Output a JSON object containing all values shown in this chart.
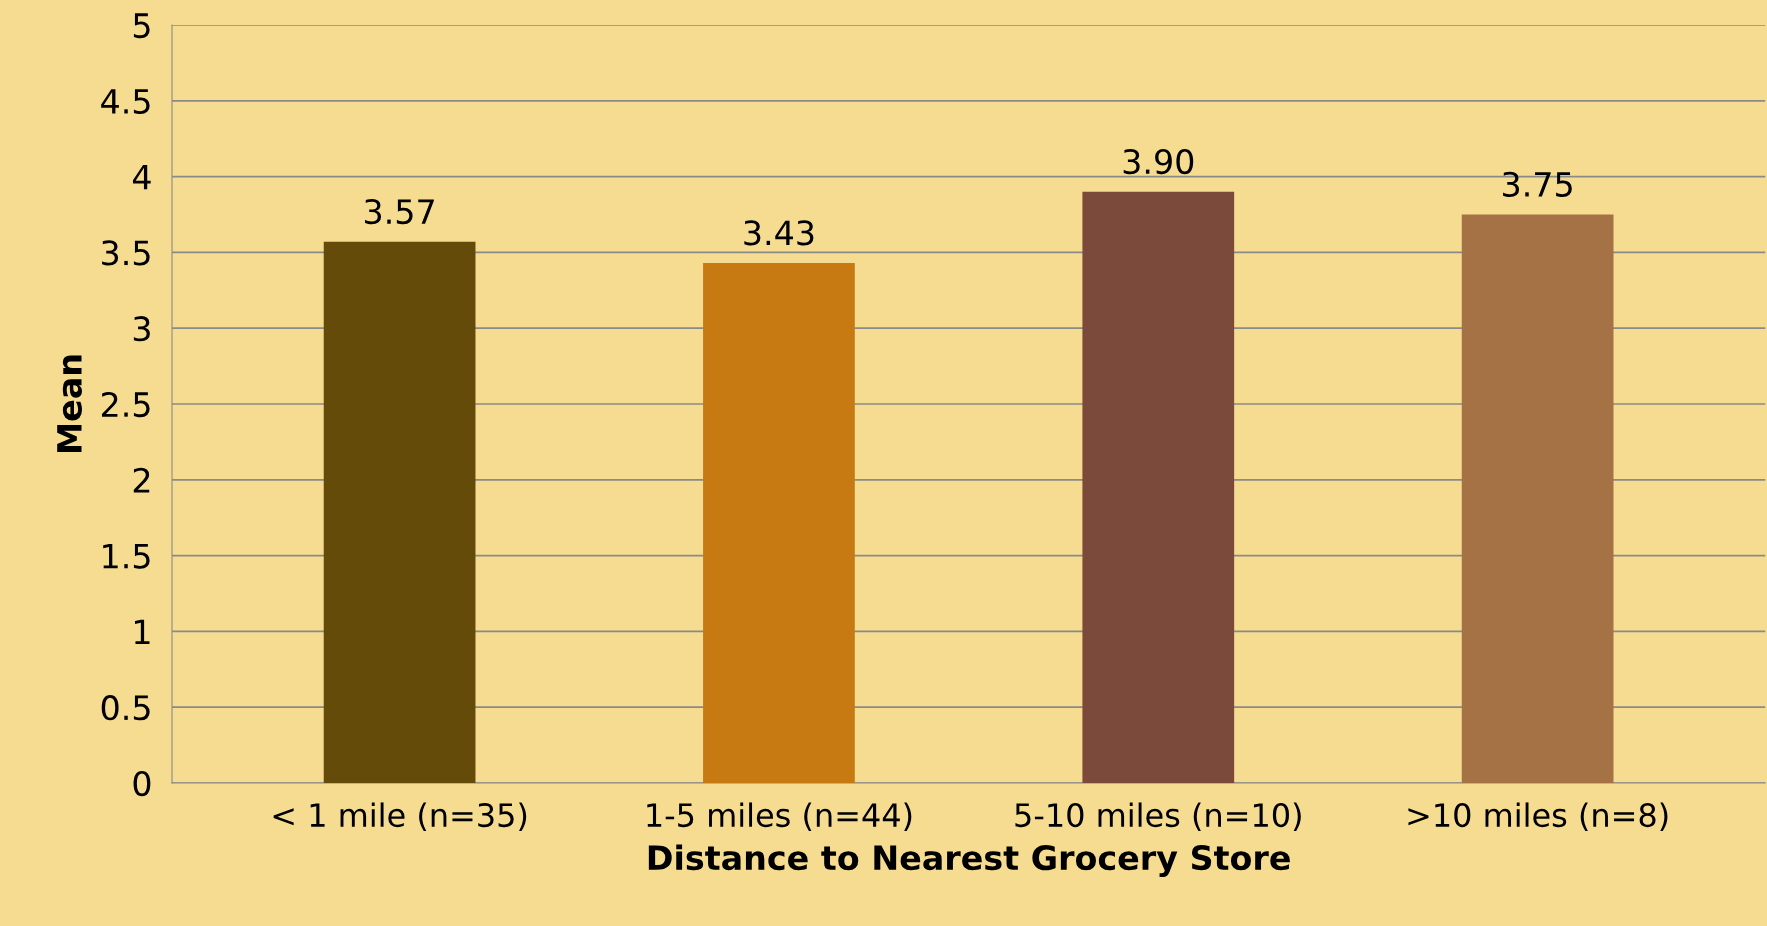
{
  "chart_data": {
    "type": "bar",
    "xlabel": "Distance to Nearest Grocery Store",
    "ylabel": "Mean",
    "categories": [
      "< 1 mile (n=35)",
      "1-5 miles (n=44)",
      "5-10 miles (n=10)",
      ">10 miles (n=8)"
    ],
    "values": [
      3.57,
      3.43,
      3.9,
      3.75
    ],
    "value_labels": [
      "3.57",
      "3.43",
      "3.90",
      "3.75"
    ],
    "colors": [
      "#654b0a",
      "#c77a12",
      "#7b4a3a",
      "#a47244"
    ],
    "ylim": [
      0,
      5
    ],
    "yticks": [
      0,
      0.5,
      1,
      1.5,
      2,
      2.5,
      3,
      3.5,
      4,
      4.5,
      5
    ],
    "grid": "y",
    "legend": false
  }
}
